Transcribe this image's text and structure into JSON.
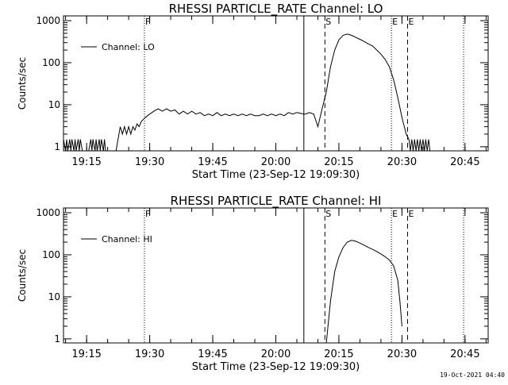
{
  "footer": {
    "timestamp": "19-Oct-2021 04:40"
  },
  "chart_data": [
    {
      "type": "line",
      "title": "RHESSI PARTICLE_RATE Channel: LO",
      "xlabel": "Start Time (23-Sep-12 19:09:30)",
      "ylabel": "Counts/sec",
      "yscale": "log",
      "ylim": [
        0.8,
        1300
      ],
      "xlim": [
        "19:09:30",
        "20:50:30"
      ],
      "x_ticks": [
        "19:15",
        "19:30",
        "19:45",
        "20:00",
        "20:15",
        "20:30",
        "20:45"
      ],
      "y_ticks": [
        "1",
        "10",
        "100",
        "1000"
      ],
      "legend": {
        "position": "top-left",
        "entries": [
          "Channel: LO"
        ]
      },
      "markers": [
        {
          "label": "F",
          "time": "19:28:45",
          "style": "dotted"
        },
        {
          "label": "",
          "time": "20:06:40",
          "style": "solid"
        },
        {
          "label": "S",
          "time": "20:11:40",
          "style": "dashed"
        },
        {
          "label": "E",
          "time": "20:27:30",
          "style": "dotted"
        },
        {
          "label": "E",
          "time": "20:31:20",
          "style": "dashed"
        },
        {
          "label": "",
          "time": "20:44:40",
          "style": "dotted"
        }
      ],
      "series": [
        {
          "name": "Channel: LO",
          "x": [
            "19:09:30",
            "19:10:00",
            "19:10:15",
            "19:10:30",
            "19:11:00",
            "19:11:15",
            "19:11:30",
            "19:12:00",
            "19:12:15",
            "19:12:30",
            "19:13:00",
            "19:13:15",
            "19:13:30",
            "19:14:00",
            "19:15:30",
            "19:16:00",
            "19:16:15",
            "19:16:30",
            "19:17:00",
            "19:17:15",
            "19:17:30",
            "19:18:00",
            "19:18:15",
            "19:18:30",
            "19:19:00",
            "19:19:15",
            "19:19:30",
            "19:22:00",
            "19:23:00",
            "19:23:30",
            "19:24:00",
            "19:24:30",
            "19:25:00",
            "19:25:30",
            "19:26:00",
            "19:26:30",
            "19:27:00",
            "19:27:30",
            "19:28:00",
            "19:28:30",
            "19:29:00",
            "19:29:30",
            "19:30:00",
            "19:31:00",
            "19:32:00",
            "19:33:00",
            "19:34:00",
            "19:35:00",
            "19:36:00",
            "19:37:00",
            "19:38:00",
            "19:39:00",
            "19:40:00",
            "19:41:00",
            "19:42:00",
            "19:43:00",
            "19:44:00",
            "19:45:00",
            "19:46:00",
            "19:47:00",
            "19:48:00",
            "19:49:00",
            "19:50:00",
            "19:51:00",
            "19:52:00",
            "19:53:00",
            "19:54:00",
            "19:55:00",
            "19:56:00",
            "19:57:00",
            "19:58:00",
            "19:59:00",
            "20:00:00",
            "20:01:00",
            "20:02:00",
            "20:03:00",
            "20:04:00",
            "20:05:00",
            "20:06:00",
            "20:06:40",
            "20:07:00",
            "20:08:00",
            "20:09:00",
            "20:10:00",
            "20:11:00",
            "20:12:00",
            "20:13:00",
            "20:14:00",
            "20:15:00",
            "20:16:00",
            "20:17:00",
            "20:18:00",
            "20:19:00",
            "20:20:00",
            "20:21:00",
            "20:22:00",
            "20:23:00",
            "20:24:00",
            "20:25:00",
            "20:26:00",
            "20:27:00",
            "20:28:00",
            "20:29:00",
            "20:30:00",
            "20:31:00",
            "20:31:40",
            "20:32:00",
            "20:32:20",
            "20:32:40",
            "20:33:00",
            "20:33:20",
            "20:33:40",
            "20:34:00",
            "20:34:20",
            "20:34:40",
            "20:35:00",
            "20:35:20",
            "20:35:40",
            "20:36:00",
            "20:36:20",
            "20:36:40"
          ],
          "y": [
            1.5,
            0.8,
            1.5,
            0.8,
            1.5,
            0.8,
            1.5,
            0.8,
            1.5,
            0.8,
            1.5,
            0.8,
            1.5,
            0.8,
            0.8,
            1.5,
            0.8,
            1.5,
            0.8,
            1.5,
            0.8,
            1.5,
            0.8,
            1.5,
            0.8,
            1.5,
            0.8,
            0.8,
            3,
            2,
            3,
            2,
            3,
            2,
            3,
            2.5,
            3.5,
            3,
            4,
            4.5,
            5,
            5.5,
            6,
            7,
            8,
            7,
            8,
            7,
            7.5,
            6,
            7,
            6,
            7,
            6,
            6.5,
            5.5,
            6,
            5.5,
            6.5,
            5.5,
            6,
            5.5,
            6,
            5.5,
            6,
            5.5,
            6,
            5.5,
            5.5,
            6,
            5.5,
            6,
            5.5,
            6,
            5.5,
            6.5,
            6,
            6.5,
            6.2,
            6,
            6,
            6.5,
            6,
            3,
            8,
            20,
            80,
            200,
            350,
            450,
            480,
            450,
            400,
            360,
            320,
            280,
            250,
            200,
            160,
            120,
            80,
            40,
            15,
            5,
            2,
            1.5,
            0.8,
            1.5,
            0.8,
            1.5,
            0.8,
            1.5,
            0.8,
            1.5,
            0.8,
            1.5,
            0.8,
            1.5,
            0.8,
            1.5,
            0.8
          ]
        }
      ]
    },
    {
      "type": "line",
      "title": "RHESSI PARTICLE_RATE Channel: HI",
      "xlabel": "Start Time (23-Sep-12 19:09:30)",
      "ylabel": "Counts/sec",
      "yscale": "log",
      "ylim": [
        0.8,
        1300
      ],
      "xlim": [
        "19:09:30",
        "20:50:30"
      ],
      "x_ticks": [
        "19:15",
        "19:30",
        "19:45",
        "20:00",
        "20:15",
        "20:30",
        "20:45"
      ],
      "y_ticks": [
        "1",
        "10",
        "100",
        "1000"
      ],
      "legend": {
        "position": "top-left",
        "entries": [
          "Channel: HI"
        ]
      },
      "markers": [
        {
          "label": "F",
          "time": "19:28:45",
          "style": "dotted"
        },
        {
          "label": "",
          "time": "20:06:40",
          "style": "solid"
        },
        {
          "label": "S",
          "time": "20:11:40",
          "style": "dashed"
        },
        {
          "label": "E",
          "time": "20:27:30",
          "style": "dotted"
        },
        {
          "label": "E",
          "time": "20:31:20",
          "style": "dashed"
        },
        {
          "label": "",
          "time": "20:44:40",
          "style": "dotted"
        }
      ],
      "series": [
        {
          "name": "Channel: HI",
          "x": [
            "20:12:00",
            "20:13:00",
            "20:14:00",
            "20:15:00",
            "20:16:00",
            "20:17:00",
            "20:18:00",
            "20:19:00",
            "20:20:00",
            "20:21:00",
            "20:22:00",
            "20:23:00",
            "20:24:00",
            "20:25:00",
            "20:26:00",
            "20:27:00",
            "20:28:00",
            "20:29:00",
            "20:29:30",
            "20:30:00"
          ],
          "y": [
            0.8,
            8,
            40,
            90,
            150,
            200,
            220,
            210,
            190,
            170,
            150,
            135,
            120,
            105,
            90,
            75,
            55,
            25,
            8,
            2
          ]
        }
      ]
    }
  ]
}
